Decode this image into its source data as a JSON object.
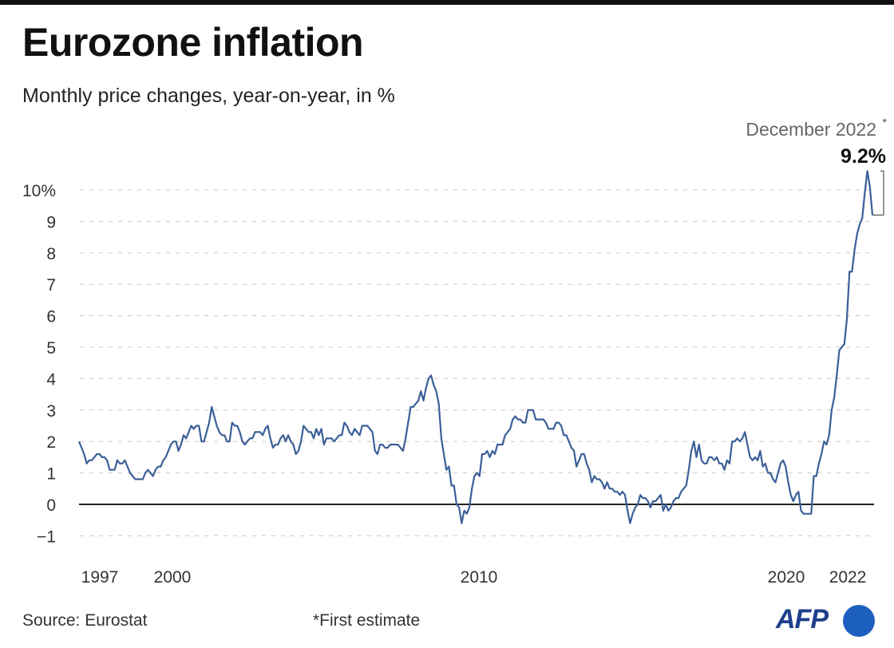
{
  "title": "Eurozone inflation",
  "subtitle": "Monthly price changes, year-on-year, in %",
  "footer": {
    "source": "Source: Eurostat",
    "note": "*First estimate",
    "logo": "AFP"
  },
  "chart_data": {
    "type": "line",
    "title": "Eurozone inflation",
    "ylabel": "",
    "xlabel": "",
    "ylim": [
      -1,
      10
    ],
    "y_ticks": [
      "10%",
      "9",
      "8",
      "7",
      "6",
      "5",
      "4",
      "3",
      "2",
      "1",
      "0",
      "−1"
    ],
    "x_ticks": [
      "1997",
      "2000",
      "2010",
      "2020",
      "2022"
    ],
    "grid": true,
    "start": "1997-01",
    "end": "2022-12",
    "frequency": "monthly",
    "line_color": "#3b5f98",
    "annotation": {
      "label": "December 2022",
      "asterisk": "*",
      "value": "9.2%"
    },
    "values": [
      2.0,
      1.8,
      1.6,
      1.3,
      1.4,
      1.4,
      1.5,
      1.6,
      1.6,
      1.5,
      1.5,
      1.4,
      1.1,
      1.1,
      1.1,
      1.4,
      1.3,
      1.3,
      1.4,
      1.2,
      1.0,
      0.9,
      0.8,
      0.8,
      0.8,
      0.8,
      1.0,
      1.1,
      1.0,
      0.9,
      1.1,
      1.2,
      1.2,
      1.4,
      1.5,
      1.7,
      1.9,
      2.0,
      2.0,
      1.7,
      1.9,
      2.2,
      2.1,
      2.3,
      2.5,
      2.4,
      2.5,
      2.5,
      2.0,
      2.0,
      2.3,
      2.6,
      3.1,
      2.8,
      2.5,
      2.3,
      2.2,
      2.2,
      2.0,
      2.0,
      2.6,
      2.5,
      2.5,
      2.3,
      2.0,
      1.9,
      2.0,
      2.1,
      2.1,
      2.3,
      2.3,
      2.3,
      2.2,
      2.4,
      2.5,
      2.1,
      1.8,
      1.9,
      1.9,
      2.1,
      2.2,
      2.0,
      2.2,
      2.0,
      1.9,
      1.6,
      1.7,
      2.0,
      2.5,
      2.4,
      2.3,
      2.3,
      2.1,
      2.4,
      2.2,
      2.4,
      1.9,
      2.1,
      2.1,
      2.1,
      2.0,
      2.1,
      2.2,
      2.2,
      2.6,
      2.5,
      2.3,
      2.2,
      2.4,
      2.3,
      2.2,
      2.5,
      2.5,
      2.5,
      2.4,
      2.3,
      1.7,
      1.6,
      1.9,
      1.9,
      1.8,
      1.8,
      1.9,
      1.9,
      1.9,
      1.9,
      1.8,
      1.7,
      2.1,
      2.6,
      3.1,
      3.1,
      3.2,
      3.3,
      3.6,
      3.3,
      3.7,
      4.0,
      4.1,
      3.8,
      3.6,
      3.2,
      2.1,
      1.6,
      1.1,
      1.2,
      0.6,
      0.6,
      0.0,
      -0.1,
      -0.6,
      -0.2,
      -0.3,
      -0.1,
      0.5,
      0.9,
      1.0,
      0.9,
      1.6,
      1.6,
      1.7,
      1.5,
      1.7,
      1.6,
      1.9,
      1.9,
      1.9,
      2.2,
      2.3,
      2.4,
      2.7,
      2.8,
      2.7,
      2.7,
      2.6,
      2.6,
      3.0,
      3.0,
      3.0,
      2.7,
      2.7,
      2.7,
      2.7,
      2.6,
      2.4,
      2.4,
      2.4,
      2.6,
      2.6,
      2.5,
      2.2,
      2.2,
      2.0,
      1.8,
      1.7,
      1.2,
      1.4,
      1.6,
      1.6,
      1.3,
      1.1,
      0.7,
      0.9,
      0.8,
      0.8,
      0.7,
      0.5,
      0.7,
      0.5,
      0.5,
      0.4,
      0.4,
      0.3,
      0.4,
      0.3,
      -0.2,
      -0.6,
      -0.3,
      -0.1,
      0.0,
      0.3,
      0.2,
      0.2,
      0.1,
      -0.1,
      0.1,
      0.1,
      0.2,
      0.3,
      -0.2,
      0.0,
      -0.2,
      -0.1,
      0.1,
      0.2,
      0.2,
      0.4,
      0.5,
      0.6,
      1.1,
      1.7,
      2.0,
      1.5,
      1.9,
      1.4,
      1.3,
      1.3,
      1.5,
      1.5,
      1.4,
      1.5,
      1.3,
      1.3,
      1.1,
      1.4,
      1.3,
      2.0,
      2.0,
      2.1,
      2.0,
      2.1,
      2.3,
      1.9,
      1.5,
      1.4,
      1.5,
      1.4,
      1.7,
      1.2,
      1.3,
      1.0,
      1.0,
      0.8,
      0.7,
      1.0,
      1.3,
      1.4,
      1.2,
      0.7,
      0.3,
      0.1,
      0.3,
      0.4,
      -0.2,
      -0.3,
      -0.3,
      -0.3,
      -0.3,
      0.9,
      0.9,
      1.3,
      1.6,
      2.0,
      1.9,
      2.2,
      3.0,
      3.4,
      4.1,
      4.9,
      5.0,
      5.1,
      5.9,
      7.4,
      7.4,
      8.1,
      8.6,
      8.9,
      9.1,
      9.9,
      10.6,
      10.1,
      9.2
    ]
  }
}
